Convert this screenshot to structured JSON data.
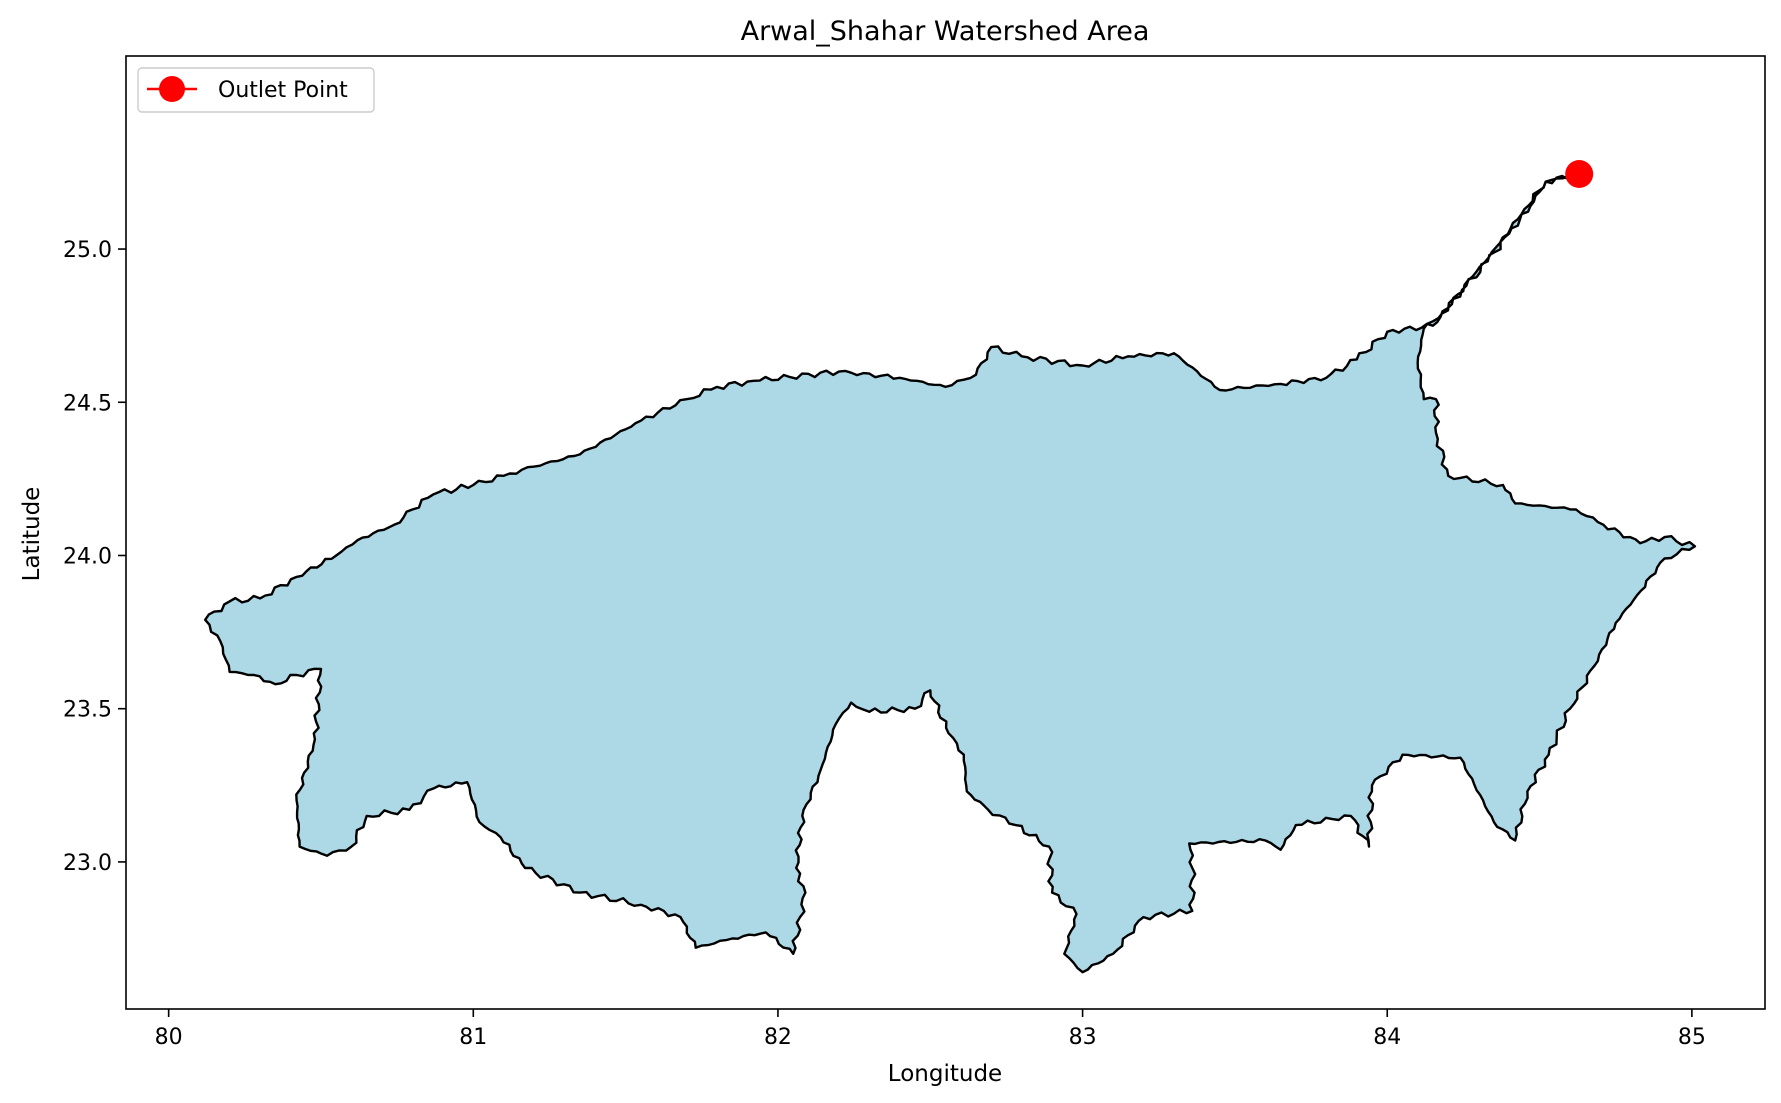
{
  "chart_data": {
    "type": "map",
    "title": "Arwal_Shahar Watershed Area",
    "xlabel": "Longitude",
    "ylabel": "Latitude",
    "xlim": [
      79.86,
      85.24
    ],
    "ylim": [
      22.52,
      25.63
    ],
    "xticks": [
      80,
      81,
      82,
      83,
      84,
      85
    ],
    "yticks": [
      23.0,
      23.5,
      24.0,
      24.5,
      25.0
    ],
    "xtick_labels": [
      "80",
      "81",
      "82",
      "83",
      "84",
      "85"
    ],
    "ytick_labels": [
      "23.0",
      "23.5",
      "24.0",
      "24.5",
      "25.0"
    ],
    "grid": false,
    "legend": {
      "position": "top-left",
      "entries": [
        {
          "label": "Outlet Point",
          "color": "#ff0000",
          "marker": "circle"
        }
      ]
    },
    "outlet_point": {
      "lon": 84.63,
      "lat": 25.245,
      "color": "#ff0000"
    },
    "watershed": {
      "fill": "#add8e6",
      "edge": "#000000",
      "boundary": [
        [
          84.63,
          25.245
        ],
        [
          84.52,
          25.22
        ],
        [
          84.47,
          25.14
        ],
        [
          84.4,
          25.05
        ],
        [
          84.33,
          24.96
        ],
        [
          84.26,
          24.88
        ],
        [
          84.18,
          24.79
        ],
        [
          84.12,
          24.74
        ],
        [
          84.1,
          24.63
        ],
        [
          84.12,
          24.51
        ],
        [
          84.16,
          24.51
        ],
        [
          84.16,
          24.4
        ],
        [
          84.2,
          24.26
        ],
        [
          84.38,
          24.23
        ],
        [
          84.42,
          24.17
        ],
        [
          84.62,
          24.15
        ],
        [
          84.71,
          24.1
        ],
        [
          84.83,
          24.04
        ],
        [
          84.91,
          24.06
        ],
        [
          85.01,
          24.03
        ],
        [
          84.91,
          23.99
        ],
        [
          84.82,
          23.87
        ],
        [
          84.75,
          23.78
        ],
        [
          84.68,
          23.64
        ],
        [
          84.6,
          23.5
        ],
        [
          84.53,
          23.35
        ],
        [
          84.46,
          23.23
        ],
        [
          84.42,
          23.07
        ],
        [
          84.35,
          23.13
        ],
        [
          84.24,
          23.34
        ],
        [
          84.05,
          23.35
        ],
        [
          83.95,
          23.25
        ],
        [
          83.94,
          23.05
        ],
        [
          83.88,
          23.15
        ],
        [
          83.7,
          23.12
        ],
        [
          83.65,
          23.04
        ],
        [
          83.6,
          23.07
        ],
        [
          83.35,
          23.06
        ],
        [
          83.36,
          22.98
        ],
        [
          83.36,
          22.84
        ],
        [
          83.2,
          22.82
        ],
        [
          83.1,
          22.7
        ],
        [
          83.0,
          22.64
        ],
        [
          82.94,
          22.7
        ],
        [
          82.98,
          22.83
        ],
        [
          82.9,
          22.9
        ],
        [
          82.89,
          23.05
        ],
        [
          82.78,
          23.12
        ],
        [
          82.69,
          23.17
        ],
        [
          82.62,
          23.23
        ],
        [
          82.61,
          23.35
        ],
        [
          82.56,
          23.42
        ],
        [
          82.5,
          23.56
        ],
        [
          82.45,
          23.5
        ],
        [
          82.3,
          23.49
        ],
        [
          82.24,
          23.52
        ],
        [
          82.19,
          23.45
        ],
        [
          82.14,
          23.3
        ],
        [
          82.08,
          23.15
        ],
        [
          82.06,
          22.98
        ],
        [
          82.09,
          22.9
        ],
        [
          82.05,
          22.7
        ],
        [
          81.96,
          22.77
        ],
        [
          81.85,
          22.75
        ],
        [
          81.73,
          22.72
        ],
        [
          81.68,
          22.82
        ],
        [
          81.55,
          22.86
        ],
        [
          81.35,
          22.9
        ],
        [
          81.17,
          22.98
        ],
        [
          81.09,
          23.08
        ],
        [
          81.02,
          23.13
        ],
        [
          80.98,
          23.26
        ],
        [
          80.87,
          23.24
        ],
        [
          80.79,
          23.17
        ],
        [
          80.65,
          23.15
        ],
        [
          80.6,
          23.05
        ],
        [
          80.52,
          23.02
        ],
        [
          80.43,
          23.05
        ],
        [
          80.42,
          23.2
        ],
        [
          80.48,
          23.4
        ],
        [
          80.5,
          23.63
        ],
        [
          80.42,
          23.61
        ],
        [
          80.35,
          23.58
        ],
        [
          80.28,
          23.61
        ],
        [
          80.2,
          23.62
        ],
        [
          80.17,
          23.72
        ],
        [
          80.12,
          23.79
        ],
        [
          80.2,
          23.85
        ],
        [
          80.3,
          23.86
        ],
        [
          80.42,
          23.93
        ],
        [
          80.55,
          24.0
        ],
        [
          80.62,
          24.05
        ],
        [
          80.74,
          24.1
        ],
        [
          80.8,
          24.15
        ],
        [
          80.87,
          24.2
        ],
        [
          81.0,
          24.23
        ],
        [
          81.1,
          24.26
        ],
        [
          81.2,
          24.29
        ],
        [
          81.35,
          24.33
        ],
        [
          81.55,
          24.44
        ],
        [
          81.7,
          24.51
        ],
        [
          81.8,
          24.55
        ],
        [
          81.92,
          24.57
        ],
        [
          82.2,
          24.6
        ],
        [
          82.4,
          24.58
        ],
        [
          82.55,
          24.55
        ],
        [
          82.65,
          24.59
        ],
        [
          82.7,
          24.68
        ],
        [
          82.8,
          24.65
        ],
        [
          83.0,
          24.62
        ],
        [
          83.15,
          24.65
        ],
        [
          83.3,
          24.66
        ],
        [
          83.45,
          24.54
        ],
        [
          83.65,
          24.56
        ],
        [
          83.8,
          24.58
        ],
        [
          83.9,
          24.64
        ],
        [
          84.0,
          24.73
        ],
        [
          84.15,
          24.75
        ],
        [
          84.28,
          24.91
        ],
        [
          84.37,
          25.02
        ],
        [
          84.45,
          25.13
        ],
        [
          84.52,
          25.22
        ],
        [
          84.63,
          25.245
        ]
      ]
    }
  }
}
